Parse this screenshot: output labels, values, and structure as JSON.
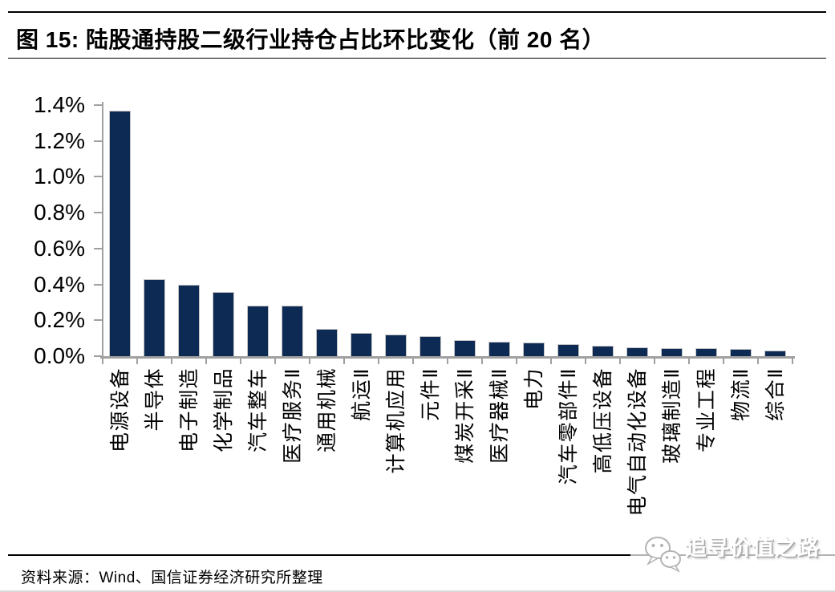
{
  "figure": {
    "title": "图 15: 陆股通持股二级行业持仓占比环比变化（前 20 名）",
    "source": "资料来源：Wind、国信证券经济研究所整理",
    "watermark": "追寻价值之路"
  },
  "chart_data": {
    "type": "bar",
    "title": "陆股通持股二级行业持仓占比环比变化（前 20 名）",
    "categories": [
      "电源设备",
      "半导体",
      "电子制造",
      "化学制品",
      "汽车整车",
      "医疗服务Ⅱ",
      "通用机械",
      "航运Ⅱ",
      "计算机应用",
      "元件Ⅱ",
      "煤炭开采Ⅱ",
      "医疗器械Ⅱ",
      "电力",
      "汽车零部件Ⅱ",
      "高低压设备",
      "电气自动化设备",
      "玻璃制造Ⅱ",
      "专业工程",
      "物流Ⅱ",
      "综合Ⅱ"
    ],
    "values": [
      1.37,
      0.43,
      0.4,
      0.36,
      0.28,
      0.28,
      0.15,
      0.13,
      0.12,
      0.11,
      0.09,
      0.08,
      0.075,
      0.065,
      0.06,
      0.05,
      0.045,
      0.045,
      0.04,
      0.03
    ],
    "unit": "%",
    "xlabel": "",
    "ylabel": "",
    "ylim": [
      0,
      1.4
    ],
    "ytick_labels": [
      "1.4%",
      "1.2%",
      "1.0%",
      "0.8%",
      "0.6%",
      "0.4%",
      "0.2%",
      "0.0%"
    ],
    "grid": false,
    "legend": "none",
    "bar_color": "#0d2a54",
    "axis_color": "#a0a0a0"
  }
}
